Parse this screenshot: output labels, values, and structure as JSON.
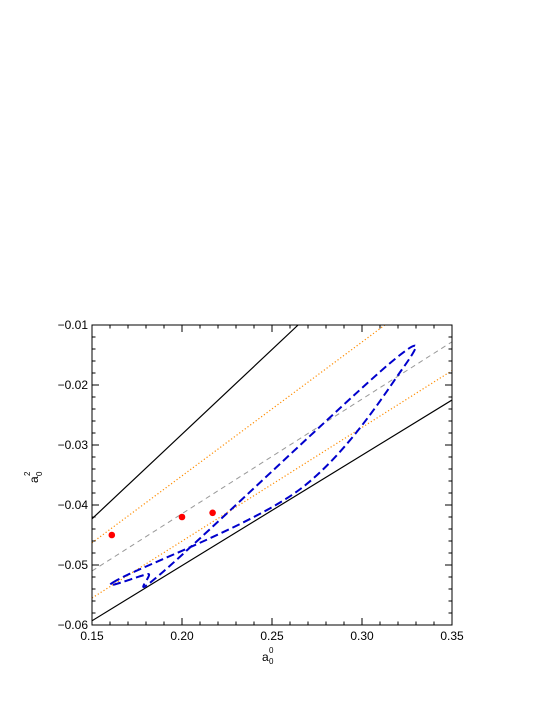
{
  "chart_data": {
    "type": "scatter",
    "xlim": [
      0.15,
      0.35
    ],
    "ylim": [
      -0.06,
      -0.01
    ],
    "xticks": [
      0.15,
      0.2,
      0.25,
      0.3,
      0.35
    ],
    "xtick_labels": [
      "0.15",
      "0.20",
      "0.25",
      "0.30",
      "0.35"
    ],
    "yticks": [
      -0.06,
      -0.05,
      -0.04,
      -0.03,
      -0.02,
      -0.01
    ],
    "ytick_labels": [
      "−0.06",
      "−0.05",
      "−0.04",
      "−0.03",
      "−0.02",
      "−0.01"
    ],
    "xlabel": {
      "base": "a",
      "sub": "0",
      "sup": "0"
    },
    "ylabel": {
      "base": "a",
      "sub": "0",
      "sup": "2"
    },
    "grid": false,
    "lines": [
      {
        "style": "solid",
        "color": "#000000",
        "points": [
          [
            0.15,
            -0.0423
          ],
          [
            0.2645,
            -0.01
          ]
        ]
      },
      {
        "style": "solid",
        "color": "#000000",
        "points": [
          [
            0.15,
            -0.0593
          ],
          [
            0.35,
            -0.0225
          ]
        ]
      },
      {
        "style": "dotted",
        "color": "#ff8c00",
        "points": [
          [
            0.15,
            -0.0463
          ],
          [
            0.3127,
            -0.01
          ]
        ]
      },
      {
        "style": "dotted",
        "color": "#ff8c00",
        "points": [
          [
            0.15,
            -0.0555
          ],
          [
            0.35,
            -0.0176
          ]
        ]
      },
      {
        "style": "dashed",
        "color": "#999999",
        "points": [
          [
            0.15,
            -0.051
          ],
          [
            0.35,
            -0.0128
          ]
        ]
      }
    ],
    "ellipse": {
      "style": "dashed",
      "color": "#0000cc",
      "center": [
        0.2425,
        -0.035
      ],
      "points": [
        [
          0.164,
          -0.0525
        ],
        [
          0.181,
          -0.0515
        ],
        [
          0.19,
          -0.051
        ],
        [
          0.315,
          -0.0165
        ],
        [
          0.322,
          -0.0175
        ],
        [
          0.265,
          -0.0375
        ]
      ]
    },
    "points": {
      "color": "#ff0000",
      "x": [
        0.161,
        0.2,
        0.217
      ],
      "y": [
        -0.045,
        -0.042,
        -0.0413
      ]
    }
  }
}
